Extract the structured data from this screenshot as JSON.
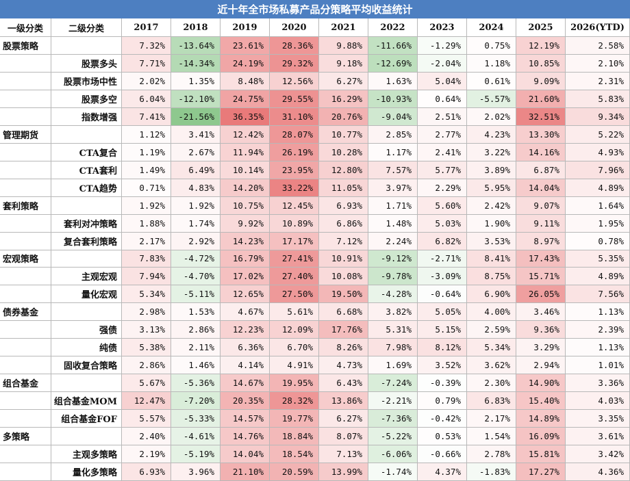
{
  "title": "近十年全市场私募产品分策略平均收益统计",
  "header": [
    "一级分类",
    "二级分类",
    "2017",
    "2018",
    "2019",
    "2020",
    "2021",
    "2022",
    "2023",
    "2024",
    "2025",
    "2026(YTD)"
  ],
  "rows": [
    [
      "股票策略",
      null,
      "7.32%",
      "-13.64%",
      "23.61%",
      "28.36%",
      "9.88%",
      "-11.66%",
      "-1.29%",
      "0.75%",
      "12.19%",
      "2.58%"
    ],
    [
      null,
      "股票多头",
      "7.71%",
      "-14.34%",
      "24.19%",
      "29.32%",
      "9.18%",
      "-12.69%",
      "-2.04%",
      "1.18%",
      "10.85%",
      "2.10%"
    ],
    [
      null,
      "股票市场中性",
      "2.02%",
      "1.35%",
      "8.48%",
      "12.56%",
      "6.27%",
      "1.63%",
      "5.04%",
      "0.61%",
      "9.09%",
      "2.31%"
    ],
    [
      null,
      "股票多空",
      "6.04%",
      "-12.10%",
      "24.75%",
      "29.55%",
      "16.29%",
      "-10.93%",
      "0.64%",
      "-5.57%",
      "21.60%",
      "5.83%"
    ],
    [
      null,
      "指数增强",
      "7.41%",
      "-21.56%",
      "36.35%",
      "31.10%",
      "20.76%",
      "-9.04%",
      "2.51%",
      "2.02%",
      "32.51%",
      "9.34%"
    ],
    [
      "管理期货",
      null,
      "1.12%",
      "3.41%",
      "12.42%",
      "28.07%",
      "10.77%",
      "2.85%",
      "2.77%",
      "4.23%",
      "13.30%",
      "5.22%"
    ],
    [
      null,
      "CTA复合",
      "1.19%",
      "2.67%",
      "11.94%",
      "26.19%",
      "10.28%",
      "1.17%",
      "2.41%",
      "3.22%",
      "14.16%",
      "4.93%"
    ],
    [
      null,
      "CTA套利",
      "1.49%",
      "6.49%",
      "10.14%",
      "23.95%",
      "12.80%",
      "7.57%",
      "5.77%",
      "3.89%",
      "6.87%",
      "7.96%"
    ],
    [
      null,
      "CTA趋势",
      "0.71%",
      "4.83%",
      "14.20%",
      "33.22%",
      "11.05%",
      "3.97%",
      "2.29%",
      "5.95%",
      "14.04%",
      "4.89%"
    ],
    [
      "套利策略",
      null,
      "1.92%",
      "1.92%",
      "10.75%",
      "12.45%",
      "6.93%",
      "1.71%",
      "5.60%",
      "2.42%",
      "9.07%",
      "1.64%"
    ],
    [
      null,
      "套利对冲策略",
      "1.88%",
      "1.74%",
      "9.92%",
      "10.89%",
      "6.86%",
      "1.48%",
      "5.03%",
      "1.90%",
      "9.11%",
      "1.95%"
    ],
    [
      null,
      "复合套利策略",
      "2.17%",
      "2.92%",
      "14.23%",
      "17.17%",
      "7.12%",
      "2.24%",
      "6.82%",
      "3.53%",
      "8.97%",
      "0.78%"
    ],
    [
      "宏观策略",
      null,
      "7.83%",
      "-4.72%",
      "16.79%",
      "27.41%",
      "10.91%",
      "-9.12%",
      "-2.71%",
      "8.41%",
      "17.43%",
      "5.35%"
    ],
    [
      null,
      "主观宏观",
      "7.94%",
      "-4.70%",
      "17.02%",
      "27.40%",
      "10.08%",
      "-9.78%",
      "-3.09%",
      "8.75%",
      "15.71%",
      "4.89%"
    ],
    [
      null,
      "量化宏观",
      "5.34%",
      "-5.11%",
      "12.65%",
      "27.50%",
      "19.50%",
      "-4.28%",
      "-0.64%",
      "6.90%",
      "26.05%",
      "7.56%"
    ],
    [
      "债券基金",
      null,
      "2.98%",
      "1.53%",
      "4.67%",
      "5.61%",
      "6.68%",
      "3.82%",
      "5.05%",
      "4.00%",
      "3.46%",
      "1.13%"
    ],
    [
      null,
      "强债",
      "3.13%",
      "2.86%",
      "12.23%",
      "12.09%",
      "17.76%",
      "5.31%",
      "5.15%",
      "2.59%",
      "9.36%",
      "2.39%"
    ],
    [
      null,
      "纯债",
      "5.38%",
      "2.11%",
      "6.36%",
      "6.70%",
      "8.26%",
      "7.98%",
      "8.12%",
      "5.34%",
      "3.29%",
      "1.13%"
    ],
    [
      null,
      "固收复合策略",
      "2.86%",
      "1.46%",
      "4.14%",
      "4.91%",
      "4.73%",
      "1.69%",
      "3.52%",
      "3.62%",
      "2.94%",
      "1.01%"
    ],
    [
      "组合基金",
      null,
      "5.67%",
      "-5.36%",
      "14.67%",
      "19.95%",
      "6.43%",
      "-7.24%",
      "-0.39%",
      "2.30%",
      "14.90%",
      "3.36%"
    ],
    [
      null,
      "组合基金MOM",
      "12.47%",
      "-7.20%",
      "20.35%",
      "28.32%",
      "13.86%",
      "-2.21%",
      "0.79%",
      "6.83%",
      "15.40%",
      "4.03%"
    ],
    [
      null,
      "组合基金FOF",
      "5.57%",
      "-5.33%",
      "14.57%",
      "19.77%",
      "6.27%",
      "-7.36%",
      "-0.42%",
      "2.17%",
      "14.89%",
      "3.35%"
    ],
    [
      "多策略",
      null,
      "2.40%",
      "-4.61%",
      "14.76%",
      "18.84%",
      "8.07%",
      "-5.22%",
      "0.53%",
      "1.54%",
      "16.09%",
      "3.61%"
    ],
    [
      null,
      "主观多策略",
      "2.19%",
      "-5.19%",
      "14.04%",
      "18.54%",
      "7.13%",
      "-6.06%",
      "-0.66%",
      "2.78%",
      "15.81%",
      "3.42%"
    ],
    [
      null,
      "量化多策略",
      "6.93%",
      "3.96%",
      "21.10%",
      "20.59%",
      "13.99%",
      "-1.74%",
      "4.37%",
      "-1.83%",
      "17.27%",
      "4.36%"
    ]
  ]
}
